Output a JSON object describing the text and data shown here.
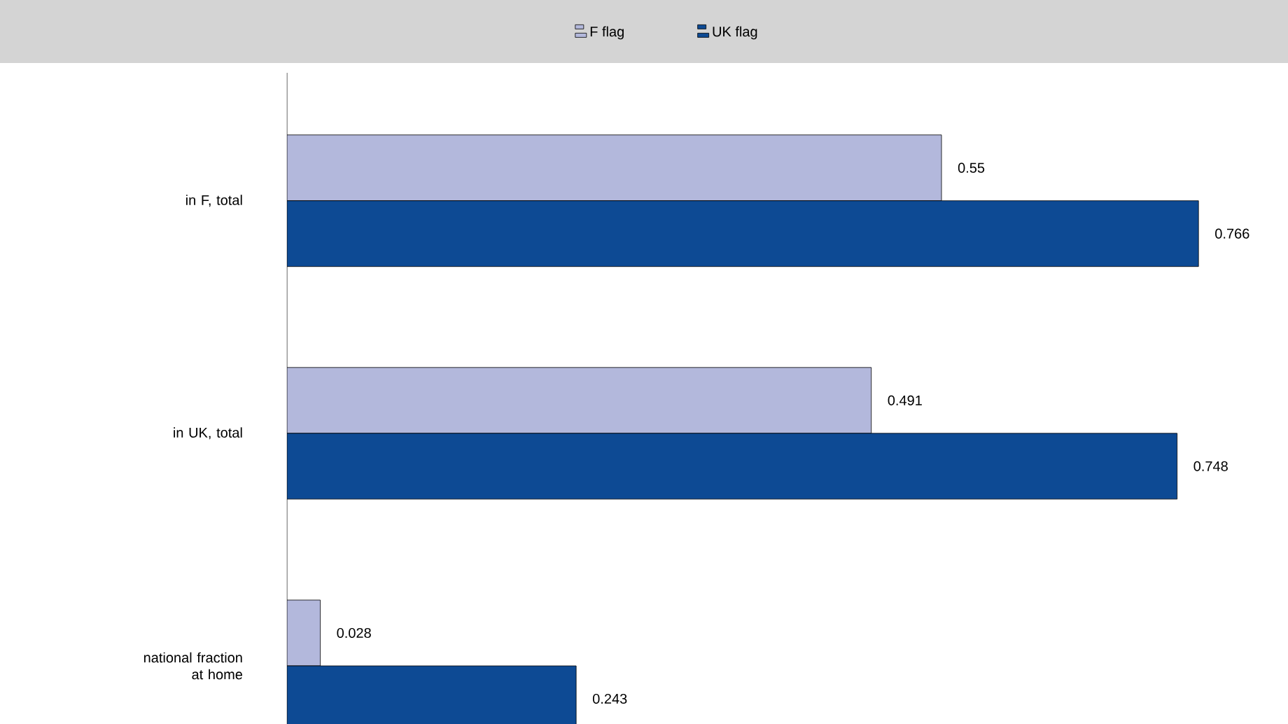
{
  "chart_data": {
    "type": "bar",
    "orientation": "horizontal",
    "categories": [
      "in F, total",
      "in UK, total",
      "national fraction at home"
    ],
    "series": [
      {
        "name": "F flag",
        "color": "#b3b8dc",
        "values": [
          0.55,
          0.491,
          0.028
        ]
      },
      {
        "name": "UK flag",
        "color": "#0d4a94",
        "values": [
          0.766,
          0.748,
          0.243
        ]
      }
    ],
    "data_labels": true,
    "legend": "top"
  }
}
